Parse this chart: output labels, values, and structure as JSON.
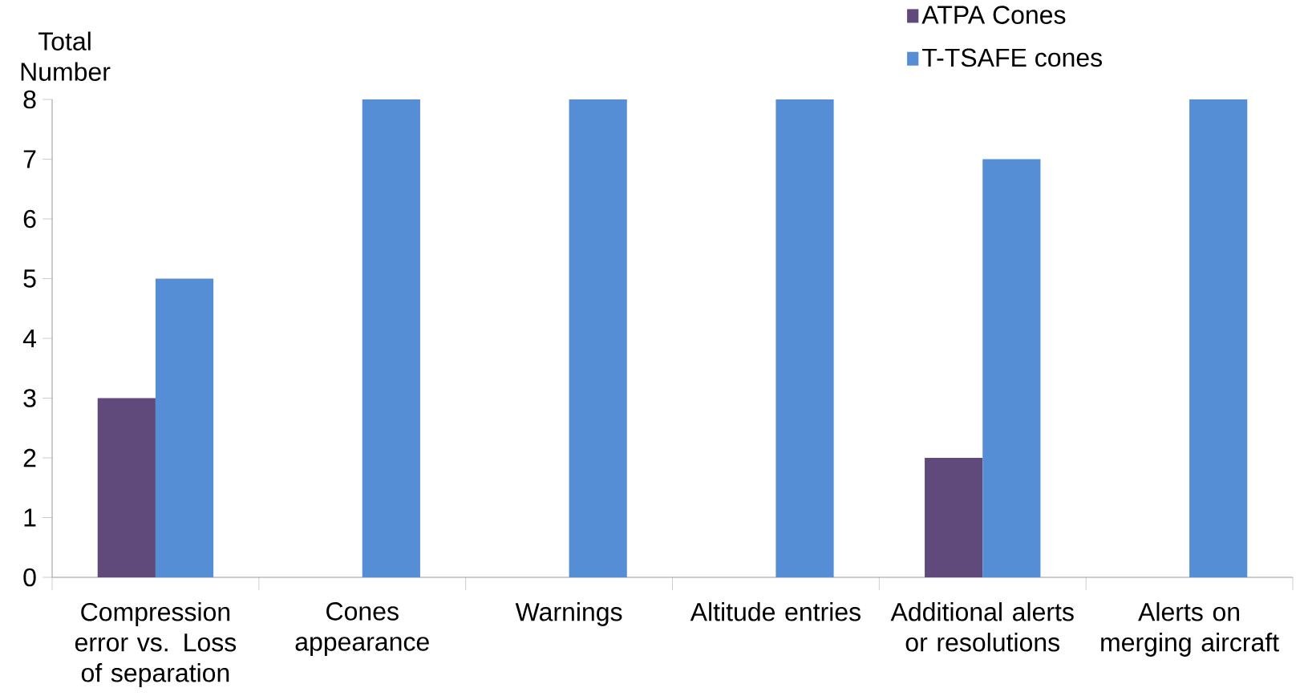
{
  "chart_data": {
    "type": "bar",
    "ylabel": "Total Number",
    "categories": [
      "Compression error vs. Loss of separation",
      "Cones appearance",
      "Warnings",
      "Altitude entries",
      "Additional alerts or resolutions",
      "Alerts on merging aircraft"
    ],
    "series": [
      {
        "name": "ATPA Cones",
        "color": "#604a7b",
        "values": [
          3,
          0,
          0,
          0,
          2,
          0
        ]
      },
      {
        "name": "T-TSAFE cones",
        "color": "#558ed5",
        "values": [
          5,
          8,
          8,
          8,
          7,
          8
        ]
      }
    ],
    "ylim": [
      0,
      8
    ],
    "yticks": [
      0,
      1,
      2,
      3,
      4,
      5,
      6,
      7,
      8
    ],
    "legend": "top right"
  }
}
